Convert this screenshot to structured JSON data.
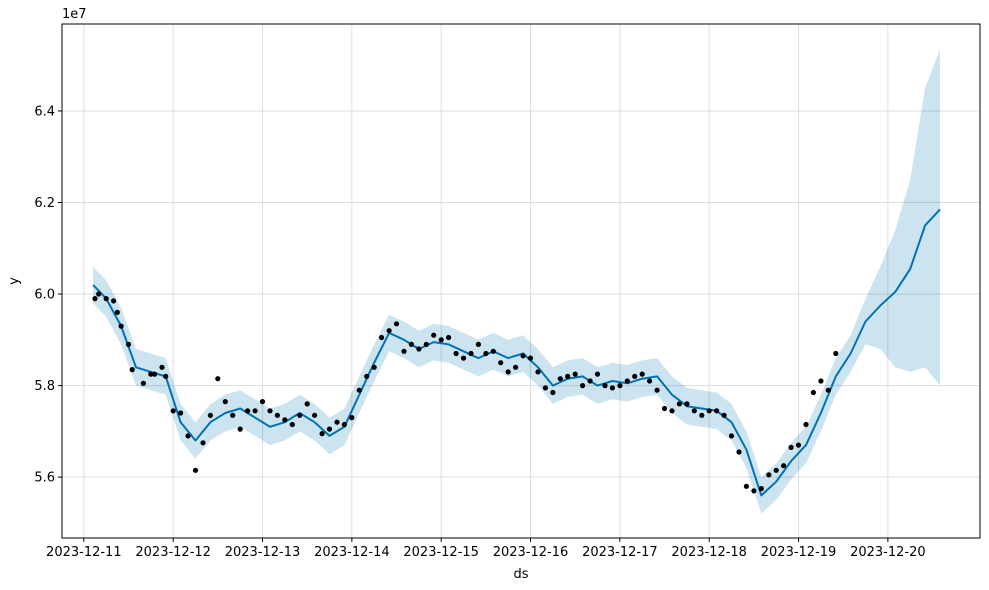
{
  "chart_data": {
    "type": "line",
    "title": "",
    "xlabel": "ds",
    "ylabel": "y",
    "y_offset_label": "1e7",
    "y_scale": 10000000,
    "grid": true,
    "xlim": [
      "2023-12-10T18:08",
      "2023-12-21T00:45"
    ],
    "ylim": [
      5.467,
      6.59
    ],
    "x_ticks": [
      "2023-12-11",
      "2023-12-12",
      "2023-12-13",
      "2023-12-14",
      "2023-12-15",
      "2023-12-16",
      "2023-12-17",
      "2023-12-18",
      "2023-12-19",
      "2023-12-20"
    ],
    "y_ticks": [
      5.6,
      5.8,
      6.0,
      6.2,
      6.4
    ],
    "colors": {
      "forecast": "#0072B2",
      "band": "#0072B2",
      "points": "#000000",
      "grid": "#dddddd"
    },
    "series": [
      {
        "kind": "observed",
        "x": [
          "2023-12-11T03:00",
          "2023-12-11T04:00",
          "2023-12-11T06:00",
          "2023-12-11T08:00",
          "2023-12-11T09:00",
          "2023-12-11T10:00",
          "2023-12-11T12:00",
          "2023-12-11T13:00",
          "2023-12-11T16:00",
          "2023-12-11T18:00",
          "2023-12-11T19:00",
          "2023-12-11T21:00",
          "2023-12-11T22:00",
          "2023-12-12T00:00",
          "2023-12-12T02:00",
          "2023-12-12T04:00",
          "2023-12-12T06:00",
          "2023-12-12T08:00",
          "2023-12-12T10:00",
          "2023-12-12T12:00",
          "2023-12-12T14:00",
          "2023-12-12T16:00",
          "2023-12-12T18:00",
          "2023-12-12T20:00",
          "2023-12-12T22:00",
          "2023-12-13T00:00",
          "2023-12-13T02:00",
          "2023-12-13T04:00",
          "2023-12-13T06:00",
          "2023-12-13T08:00",
          "2023-12-13T10:00",
          "2023-12-13T12:00",
          "2023-12-13T14:00",
          "2023-12-13T16:00",
          "2023-12-13T18:00",
          "2023-12-13T20:00",
          "2023-12-13T22:00",
          "2023-12-14T00:00",
          "2023-12-14T02:00",
          "2023-12-14T04:00",
          "2023-12-14T06:00",
          "2023-12-14T08:00",
          "2023-12-14T10:00",
          "2023-12-14T12:00",
          "2023-12-14T14:00",
          "2023-12-14T16:00",
          "2023-12-14T18:00",
          "2023-12-14T20:00",
          "2023-12-14T22:00",
          "2023-12-15T00:00",
          "2023-12-15T02:00",
          "2023-12-15T04:00",
          "2023-12-15T06:00",
          "2023-12-15T08:00",
          "2023-12-15T10:00",
          "2023-12-15T12:00",
          "2023-12-15T14:00",
          "2023-12-15T16:00",
          "2023-12-15T18:00",
          "2023-12-15T20:00",
          "2023-12-15T22:00",
          "2023-12-16T00:00",
          "2023-12-16T02:00",
          "2023-12-16T04:00",
          "2023-12-16T06:00",
          "2023-12-16T08:00",
          "2023-12-16T10:00",
          "2023-12-16T12:00",
          "2023-12-16T14:00",
          "2023-12-16T16:00",
          "2023-12-16T18:00",
          "2023-12-16T20:00",
          "2023-12-16T22:00",
          "2023-12-17T00:00",
          "2023-12-17T02:00",
          "2023-12-17T04:00",
          "2023-12-17T06:00",
          "2023-12-17T08:00",
          "2023-12-17T10:00",
          "2023-12-17T12:00",
          "2023-12-17T14:00",
          "2023-12-17T16:00",
          "2023-12-17T18:00",
          "2023-12-17T20:00",
          "2023-12-17T22:00",
          "2023-12-18T00:00",
          "2023-12-18T02:00",
          "2023-12-18T04:00",
          "2023-12-18T06:00",
          "2023-12-18T08:00",
          "2023-12-18T10:00",
          "2023-12-18T12:00",
          "2023-12-18T14:00",
          "2023-12-18T16:00",
          "2023-12-18T18:00",
          "2023-12-18T20:00",
          "2023-12-18T22:00",
          "2023-12-19T00:00",
          "2023-12-19T02:00",
          "2023-12-19T04:00",
          "2023-12-19T06:00",
          "2023-12-19T08:00",
          "2023-12-19T10:00"
        ],
        "y": [
          5.99,
          6.0,
          5.99,
          5.985,
          5.96,
          5.93,
          5.89,
          5.835,
          5.805,
          5.825,
          5.825,
          5.84,
          5.82,
          5.745,
          5.74,
          5.69,
          5.615,
          5.675,
          5.735,
          5.815,
          5.765,
          5.735,
          5.705,
          5.745,
          5.745,
          5.765,
          5.745,
          5.735,
          5.725,
          5.715,
          5.735,
          5.76,
          5.735,
          5.695,
          5.705,
          5.72,
          5.715,
          5.73,
          5.79,
          5.82,
          5.84,
          5.905,
          5.92,
          5.935,
          5.875,
          5.89,
          5.88,
          5.89,
          5.91,
          5.9,
          5.905,
          5.87,
          5.86,
          5.87,
          5.89,
          5.87,
          5.875,
          5.85,
          5.83,
          5.84,
          5.865,
          5.86,
          5.83,
          5.795,
          5.785,
          5.815,
          5.82,
          5.825,
          5.8,
          5.81,
          5.825,
          5.8,
          5.795,
          5.8,
          5.81,
          5.82,
          5.825,
          5.81,
          5.79,
          5.75,
          5.745,
          5.76,
          5.76,
          5.745,
          5.735,
          5.745,
          5.745,
          5.735,
          5.69,
          5.655,
          5.58,
          5.57,
          5.575,
          5.605,
          5.615,
          5.625,
          5.665,
          5.67,
          5.715,
          5.785,
          5.81,
          5.79,
          5.87
        ]
      },
      {
        "kind": "forecast",
        "x": [
          "2023-12-11T02:30",
          "2023-12-11T06:00",
          "2023-12-11T10:00",
          "2023-12-11T14:00",
          "2023-12-11T18:00",
          "2023-12-11T22:00",
          "2023-12-12T02:00",
          "2023-12-12T06:00",
          "2023-12-12T10:00",
          "2023-12-12T14:00",
          "2023-12-12T18:00",
          "2023-12-12T22:00",
          "2023-12-13T02:00",
          "2023-12-13T06:00",
          "2023-12-13T10:00",
          "2023-12-13T14:00",
          "2023-12-13T18:00",
          "2023-12-13T22:00",
          "2023-12-14T02:00",
          "2023-12-14T06:00",
          "2023-12-14T10:00",
          "2023-12-14T14:00",
          "2023-12-14T18:00",
          "2023-12-14T22:00",
          "2023-12-15T02:00",
          "2023-12-15T06:00",
          "2023-12-15T10:00",
          "2023-12-15T14:00",
          "2023-12-15T18:00",
          "2023-12-15T22:00",
          "2023-12-16T02:00",
          "2023-12-16T06:00",
          "2023-12-16T10:00",
          "2023-12-16T14:00",
          "2023-12-16T18:00",
          "2023-12-16T22:00",
          "2023-12-17T02:00",
          "2023-12-17T06:00",
          "2023-12-17T10:00",
          "2023-12-17T14:00",
          "2023-12-17T18:00",
          "2023-12-17T22:00",
          "2023-12-18T02:00",
          "2023-12-18T06:00",
          "2023-12-18T10:00",
          "2023-12-18T14:00",
          "2023-12-18T18:00",
          "2023-12-18T22:00",
          "2023-12-19T02:00",
          "2023-12-19T06:00",
          "2023-12-19T10:00",
          "2023-12-19T14:00",
          "2023-12-19T18:00",
          "2023-12-19T22:00",
          "2023-12-20T02:00",
          "2023-12-20T06:00",
          "2023-12-20T10:00",
          "2023-12-20T14:00"
        ],
        "y": [
          6.02,
          5.99,
          5.93,
          5.84,
          5.83,
          5.82,
          5.72,
          5.68,
          5.72,
          5.74,
          5.75,
          5.73,
          5.71,
          5.72,
          5.74,
          5.72,
          5.69,
          5.71,
          5.78,
          5.85,
          5.915,
          5.9,
          5.88,
          5.895,
          5.89,
          5.875,
          5.86,
          5.875,
          5.86,
          5.87,
          5.84,
          5.8,
          5.815,
          5.82,
          5.8,
          5.81,
          5.805,
          5.815,
          5.82,
          5.78,
          5.755,
          5.75,
          5.745,
          5.72,
          5.66,
          5.56,
          5.59,
          5.635,
          5.67,
          5.74,
          5.82,
          5.87,
          5.94,
          5.975,
          6.005,
          6.055,
          6.15,
          6.185
        ]
      },
      {
        "kind": "uncertainty_band",
        "x": [
          "2023-12-11T02:30",
          "2023-12-11T06:00",
          "2023-12-11T10:00",
          "2023-12-11T14:00",
          "2023-12-11T18:00",
          "2023-12-11T22:00",
          "2023-12-12T02:00",
          "2023-12-12T06:00",
          "2023-12-12T10:00",
          "2023-12-12T14:00",
          "2023-12-12T18:00",
          "2023-12-12T22:00",
          "2023-12-13T02:00",
          "2023-12-13T06:00",
          "2023-12-13T10:00",
          "2023-12-13T14:00",
          "2023-12-13T18:00",
          "2023-12-13T22:00",
          "2023-12-14T02:00",
          "2023-12-14T06:00",
          "2023-12-14T10:00",
          "2023-12-14T14:00",
          "2023-12-14T18:00",
          "2023-12-14T22:00",
          "2023-12-15T02:00",
          "2023-12-15T06:00",
          "2023-12-15T10:00",
          "2023-12-15T14:00",
          "2023-12-15T18:00",
          "2023-12-15T22:00",
          "2023-12-16T02:00",
          "2023-12-16T06:00",
          "2023-12-16T10:00",
          "2023-12-16T14:00",
          "2023-12-16T18:00",
          "2023-12-16T22:00",
          "2023-12-17T02:00",
          "2023-12-17T06:00",
          "2023-12-17T10:00",
          "2023-12-17T14:00",
          "2023-12-17T18:00",
          "2023-12-17T22:00",
          "2023-12-18T02:00",
          "2023-12-18T06:00",
          "2023-12-18T10:00",
          "2023-12-18T14:00",
          "2023-12-18T18:00",
          "2023-12-18T22:00",
          "2023-12-19T02:00",
          "2023-12-19T06:00",
          "2023-12-19T10:00",
          "2023-12-19T14:00",
          "2023-12-19T18:00",
          "2023-12-19T22:00",
          "2023-12-20T02:00",
          "2023-12-20T06:00",
          "2023-12-20T10:00",
          "2023-12-20T14:00"
        ],
        "lower": [
          5.98,
          5.95,
          5.89,
          5.8,
          5.79,
          5.78,
          5.68,
          5.64,
          5.68,
          5.7,
          5.71,
          5.69,
          5.67,
          5.68,
          5.7,
          5.68,
          5.65,
          5.67,
          5.74,
          5.81,
          5.875,
          5.86,
          5.84,
          5.855,
          5.85,
          5.835,
          5.82,
          5.835,
          5.82,
          5.83,
          5.8,
          5.76,
          5.775,
          5.78,
          5.76,
          5.77,
          5.765,
          5.775,
          5.78,
          5.74,
          5.715,
          5.71,
          5.705,
          5.68,
          5.62,
          5.52,
          5.55,
          5.595,
          5.63,
          5.7,
          5.78,
          5.83,
          5.89,
          5.88,
          5.84,
          5.83,
          5.84,
          5.8
        ],
        "upper": [
          6.06,
          6.03,
          5.97,
          5.88,
          5.87,
          5.86,
          5.76,
          5.72,
          5.76,
          5.78,
          5.79,
          5.77,
          5.75,
          5.76,
          5.78,
          5.76,
          5.73,
          5.75,
          5.82,
          5.89,
          5.955,
          5.94,
          5.92,
          5.935,
          5.93,
          5.915,
          5.9,
          5.915,
          5.9,
          5.91,
          5.88,
          5.84,
          5.855,
          5.86,
          5.84,
          5.85,
          5.845,
          5.855,
          5.86,
          5.82,
          5.795,
          5.79,
          5.785,
          5.76,
          5.7,
          5.6,
          5.63,
          5.675,
          5.71,
          5.78,
          5.86,
          5.91,
          5.99,
          6.06,
          6.14,
          6.25,
          6.45,
          6.535
        ]
      }
    ]
  }
}
